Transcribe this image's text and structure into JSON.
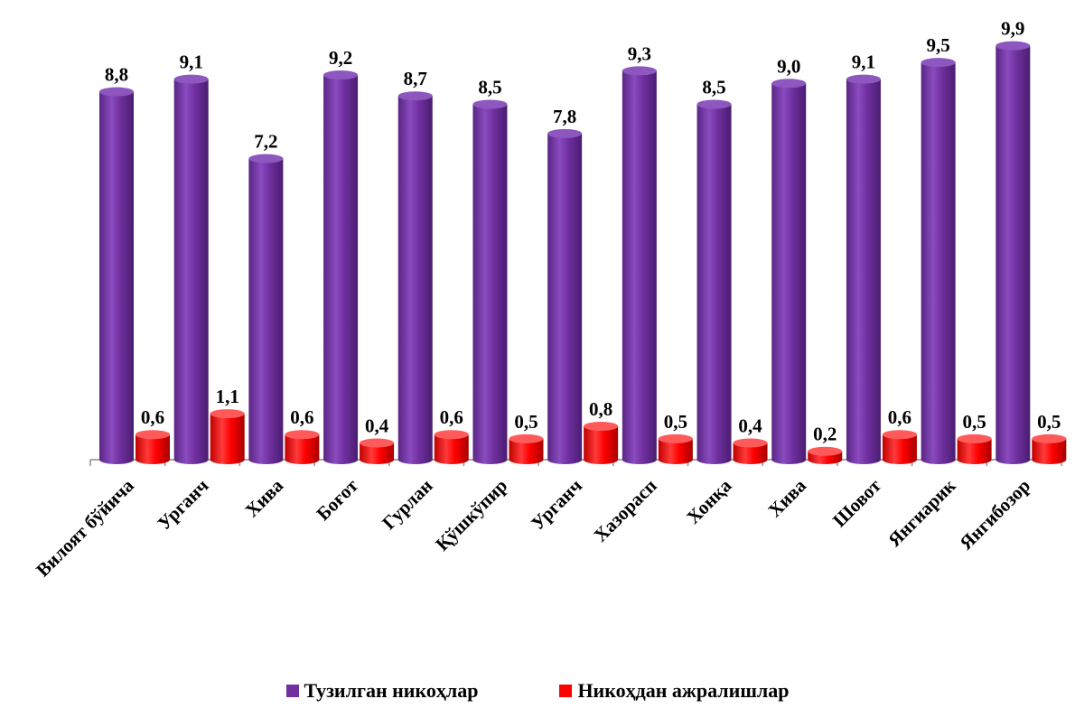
{
  "chart_data": {
    "type": "bar",
    "title": "",
    "xlabel": "",
    "ylabel": "",
    "ylim": [
      0,
      10
    ],
    "grid": false,
    "legend_position": "bottom",
    "categories": [
      "Вилоят бўйича",
      "Урганч",
      "Хива",
      "Боғот",
      "Гурлан",
      "Қўшкўпир",
      "Урганч",
      "Хазорасп",
      "Хонқа",
      "Хива",
      "Шовот",
      "Янгиарик",
      "Янгибозор"
    ],
    "series": [
      {
        "name": "Тузилган никоҳлар",
        "color": "#7030a0",
        "values": [
          8.8,
          9.1,
          7.2,
          9.2,
          8.7,
          8.5,
          7.8,
          9.3,
          8.5,
          9.0,
          9.1,
          9.5,
          9.9
        ],
        "labels": [
          "8,8",
          "9,1",
          "7,2",
          "9,2",
          "8,7",
          "8,5",
          "7,8",
          "9,3",
          "8,5",
          "9,0",
          "9,1",
          "9,5",
          "9,9"
        ]
      },
      {
        "name": "Никоҳдан ажралишлар",
        "color": "#ff0000",
        "values": [
          0.6,
          1.1,
          0.6,
          0.4,
          0.6,
          0.5,
          0.8,
          0.5,
          0.4,
          0.2,
          0.6,
          0.5,
          0.5
        ],
        "labels": [
          "0,6",
          "1,1",
          "0,6",
          "0,4",
          "0,6",
          "0,5",
          "0,8",
          "0,5",
          "0,4",
          "0,2",
          "0,6",
          "0,5",
          "0,5"
        ]
      }
    ]
  }
}
